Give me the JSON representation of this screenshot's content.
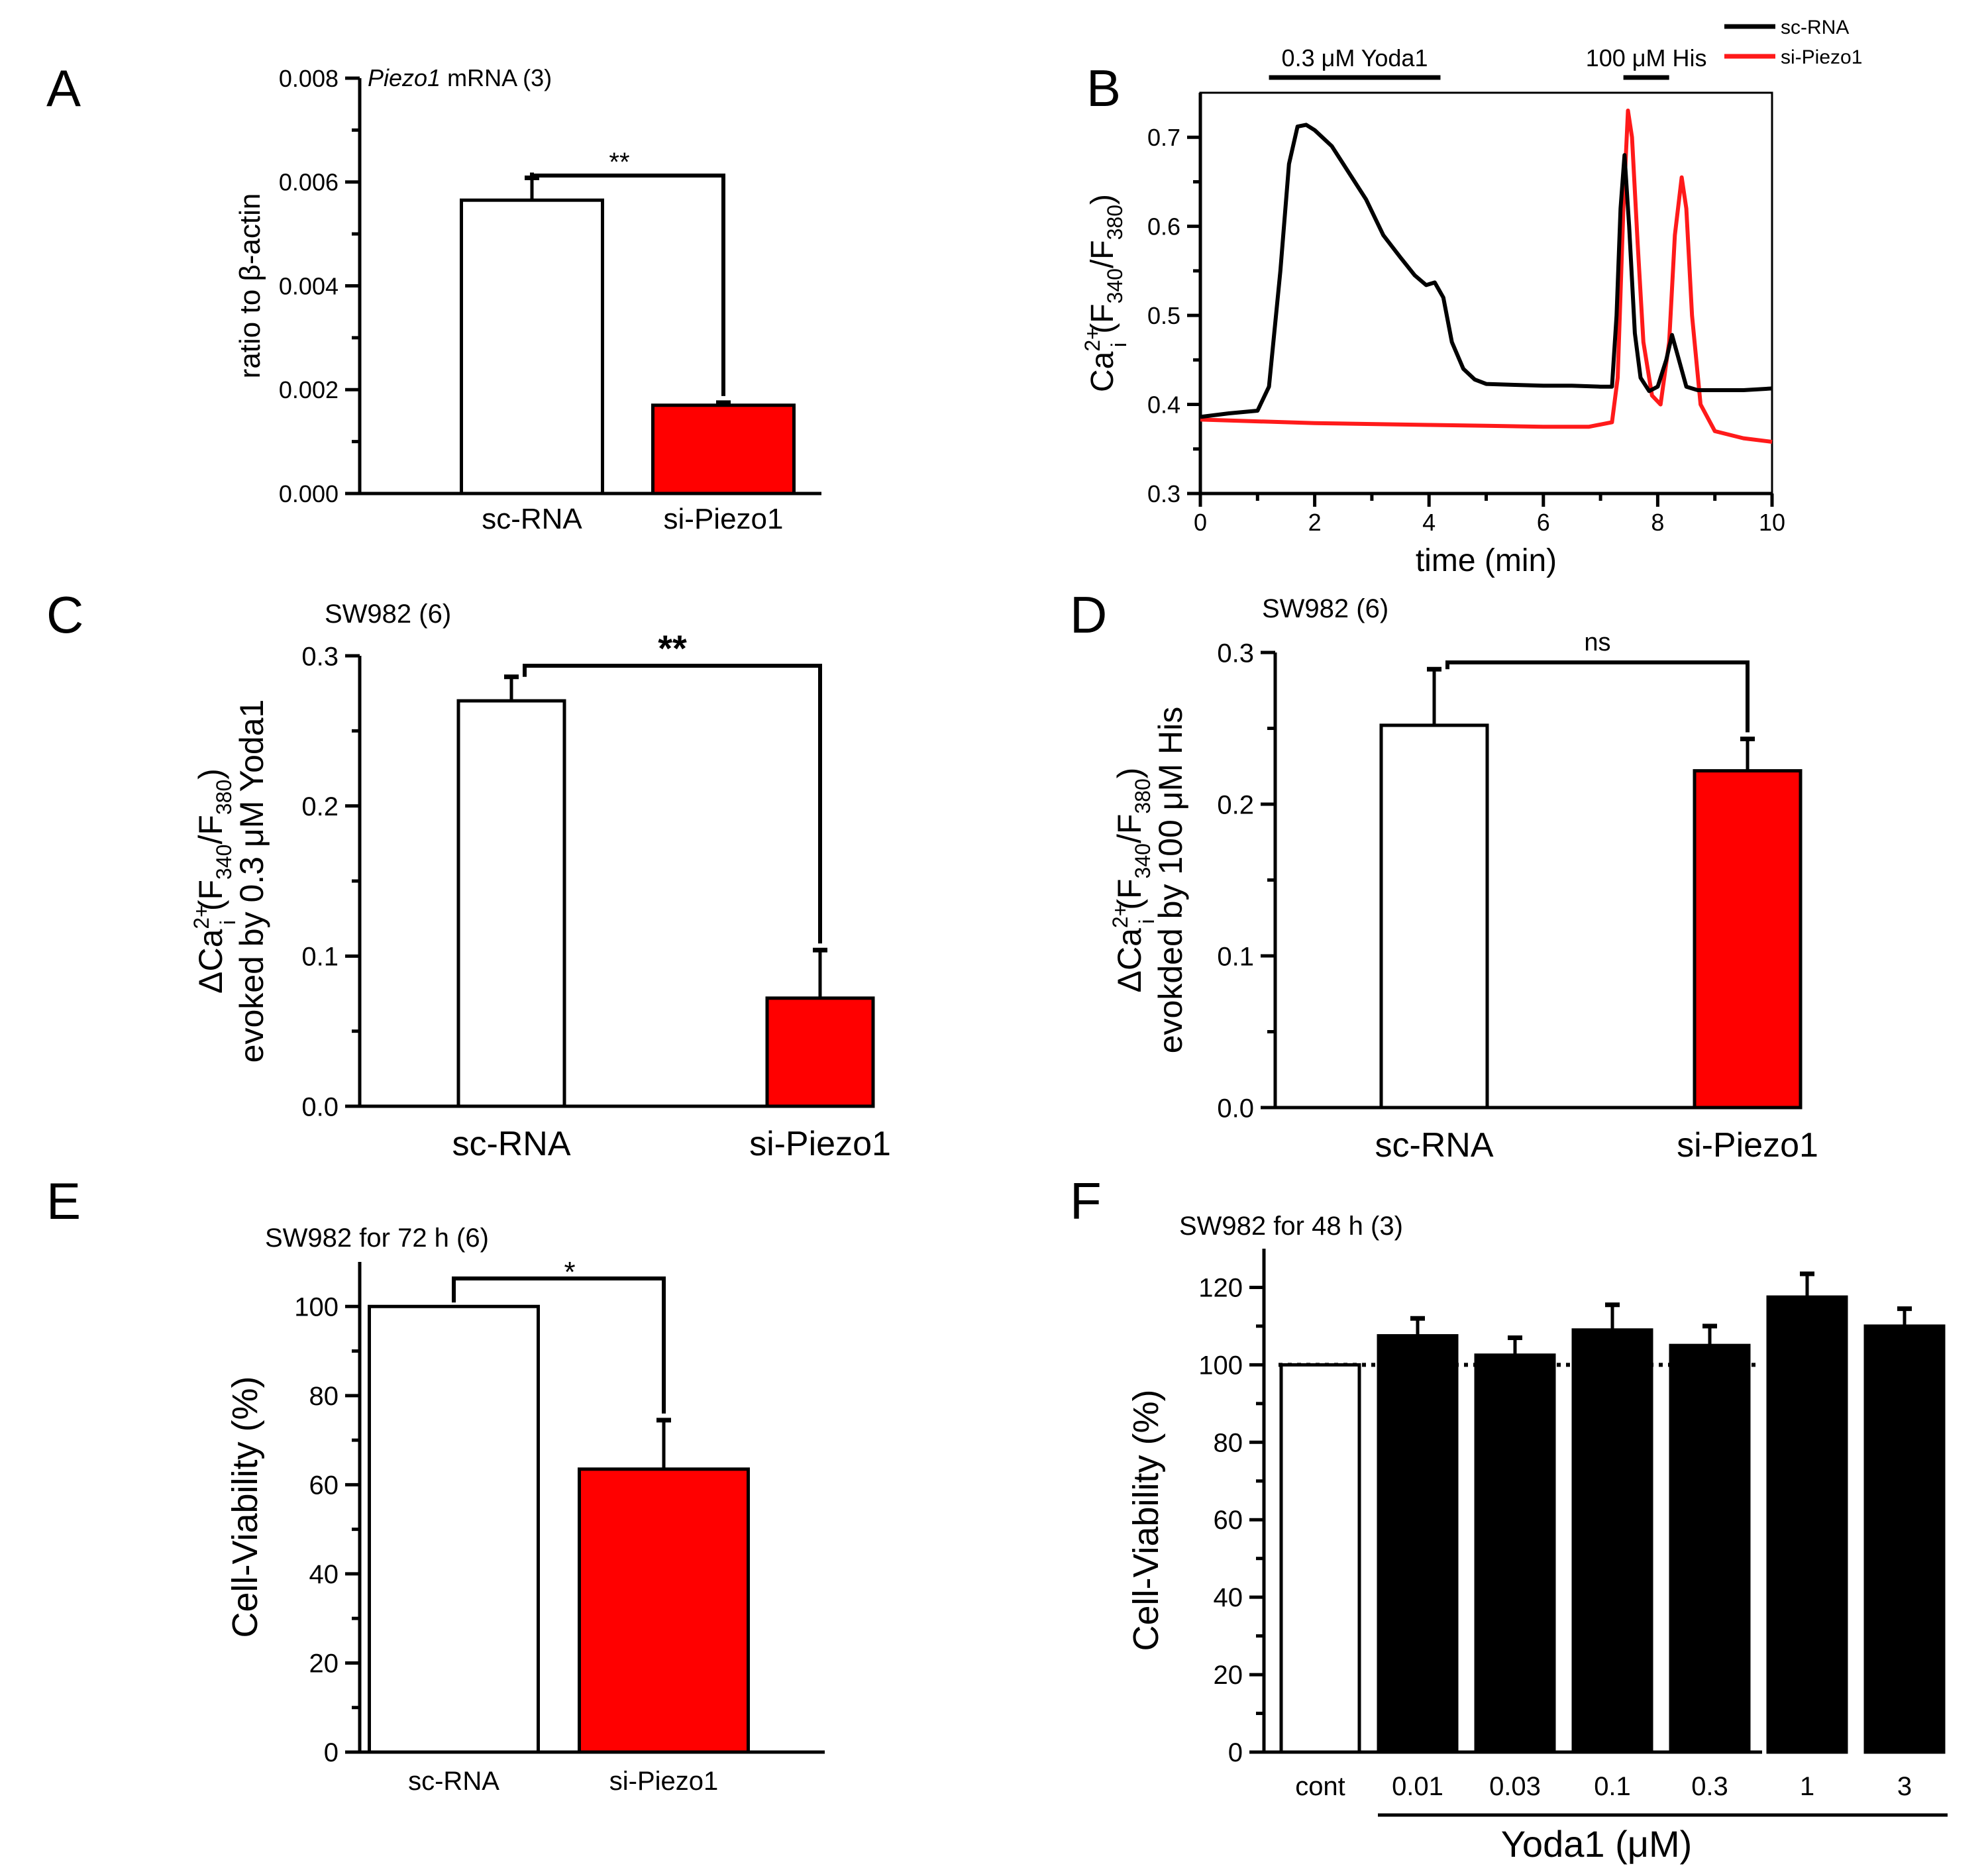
{
  "figure": {
    "panel_labels": [
      "A",
      "B",
      "C",
      "D",
      "E",
      "F"
    ],
    "sig": {
      "A": "**",
      "C": "**",
      "D": "ns",
      "E": "*"
    }
  },
  "colors": {
    "control": "#ffffff",
    "treatment": "#ff0000",
    "yoda": "#000000",
    "trace_sc": "#000000",
    "trace_si": "#ff1a1a"
  },
  "chart_data": [
    {
      "panel": "A",
      "type": "bar",
      "title_italic": "Piezo1",
      "title_rest": " mRNA (3)",
      "ylabel": "ratio to β-actin",
      "ylim": [
        0,
        0.008
      ],
      "yticks": [
        "0.000",
        "0.002",
        "0.004",
        "0.006",
        "0.008"
      ],
      "categories": [
        "sc-RNA",
        "si-Piezo1"
      ],
      "values": [
        0.00565,
        0.0017
      ],
      "errors": [
        0.00043,
        5e-05
      ]
    },
    {
      "panel": "B",
      "type": "line",
      "xlabel": "time (min)",
      "ylabel_main": "Ca",
      "ylabel_sup": "2+",
      "ylabel_sub": "i",
      "ylabel_rest": " (F",
      "ylabel_sub2": "340",
      "ylabel_mid": "/F",
      "ylabel_sub3": "380",
      "ylabel_end": ")",
      "xlim": [
        0,
        10
      ],
      "ylim": [
        0.3,
        0.75
      ],
      "xticks": [
        "0",
        "2",
        "4",
        "6",
        "8",
        "10"
      ],
      "yticks": [
        "0.3",
        "0.4",
        "0.5",
        "0.6",
        "0.7"
      ],
      "annotations": [
        {
          "text": "0.3 μM Yoda1",
          "x": [
            1.2,
            4.2
          ]
        },
        {
          "text": "100 μM His",
          "x": [
            7.4,
            8.2
          ]
        }
      ],
      "legend": [
        "sc-RNA",
        "si-Piezo1"
      ],
      "series": [
        {
          "name": "sc-RNA",
          "x": [
            0,
            0.5,
            1.0,
            1.2,
            1.4,
            1.55,
            1.7,
            1.85,
            2.0,
            2.3,
            2.6,
            2.9,
            3.2,
            3.5,
            3.75,
            3.95,
            4.1,
            4.25,
            4.4,
            4.6,
            4.8,
            5.0,
            5.5,
            6.0,
            6.5,
            7.0,
            7.2,
            7.28,
            7.35,
            7.42,
            7.5,
            7.6,
            7.7,
            7.85,
            8.0,
            8.15,
            8.25,
            8.35,
            8.5,
            8.7,
            9.0,
            9.5,
            10.0
          ],
          "y": [
            0.386,
            0.39,
            0.393,
            0.42,
            0.55,
            0.67,
            0.712,
            0.714,
            0.708,
            0.69,
            0.66,
            0.63,
            0.59,
            0.565,
            0.545,
            0.534,
            0.537,
            0.52,
            0.47,
            0.44,
            0.428,
            0.423,
            0.422,
            0.421,
            0.421,
            0.42,
            0.42,
            0.5,
            0.62,
            0.68,
            0.6,
            0.48,
            0.43,
            0.415,
            0.42,
            0.45,
            0.478,
            0.455,
            0.42,
            0.416,
            0.416,
            0.416,
            0.418
          ]
        },
        {
          "name": "si-Piezo1",
          "x": [
            0,
            0.5,
            1.0,
            2.0,
            3.0,
            4.0,
            5.0,
            6.0,
            6.8,
            7.2,
            7.3,
            7.4,
            7.48,
            7.55,
            7.65,
            7.75,
            7.9,
            8.05,
            8.2,
            8.3,
            8.42,
            8.5,
            8.6,
            8.75,
            9.0,
            9.5,
            10.0
          ],
          "y": [
            0.383,
            0.382,
            0.381,
            0.379,
            0.378,
            0.377,
            0.376,
            0.375,
            0.375,
            0.38,
            0.43,
            0.62,
            0.73,
            0.7,
            0.58,
            0.47,
            0.41,
            0.4,
            0.47,
            0.59,
            0.655,
            0.62,
            0.5,
            0.4,
            0.37,
            0.362,
            0.358
          ]
        }
      ]
    },
    {
      "panel": "C",
      "type": "bar",
      "title": "SW982 (6)",
      "ylabel_line1_delta": "ΔCa",
      "ylabel_line1_sup": "2+",
      "ylabel_line1_sub": "i",
      "ylabel_line1_rest": " (F",
      "ylabel_line1_sub2": "340",
      "ylabel_line1_mid": "/F",
      "ylabel_line1_sub3": "380",
      "ylabel_line1_end": ")",
      "ylabel_line2": "evoked by 0.3 μM Yoda1",
      "ylim": [
        0,
        0.3
      ],
      "yticks": [
        "0.0",
        "0.1",
        "0.2",
        "0.3"
      ],
      "categories": [
        "sc-RNA",
        "si-Piezo1"
      ],
      "values": [
        0.27,
        0.072
      ],
      "errors": [
        0.016,
        0.032
      ]
    },
    {
      "panel": "D",
      "type": "bar",
      "title": "SW982 (6)",
      "ylabel_line2": "evokded by 100 μM His",
      "ylim": [
        0,
        0.3
      ],
      "yticks": [
        "0.0",
        "0.1",
        "0.2",
        "0.3"
      ],
      "categories": [
        "sc-RNA",
        "si-Piezo1"
      ],
      "values": [
        0.252,
        0.222
      ],
      "errors": [
        0.037,
        0.021
      ]
    },
    {
      "panel": "E",
      "type": "bar",
      "title": "SW982 for 72 h (6)",
      "ylabel": "Cell-Viability (%)",
      "ylim": [
        0,
        110
      ],
      "yticks": [
        "0",
        "20",
        "40",
        "60",
        "80",
        "100"
      ],
      "categories": [
        "sc-RNA",
        "si-Piezo1"
      ],
      "values": [
        100,
        63.5
      ],
      "errors": [
        0,
        11
      ]
    },
    {
      "panel": "F",
      "type": "bar",
      "title": "SW982 for 48 h (3)",
      "ylabel": "Cell-Viability (%)",
      "ylim": [
        0,
        130
      ],
      "yticks": [
        "0",
        "20",
        "40",
        "60",
        "80",
        "100",
        "120"
      ],
      "categories": [
        "cont",
        "0.01",
        "0.03",
        "0.1",
        "0.3",
        "1",
        "3"
      ],
      "values": [
        100,
        107.5,
        102.5,
        109,
        105,
        117.5,
        110
      ],
      "errors": [
        0,
        4.5,
        4.5,
        6.5,
        5,
        6,
        4.5
      ],
      "group_label": "Yoda1 (μM)",
      "reference": 100
    }
  ]
}
